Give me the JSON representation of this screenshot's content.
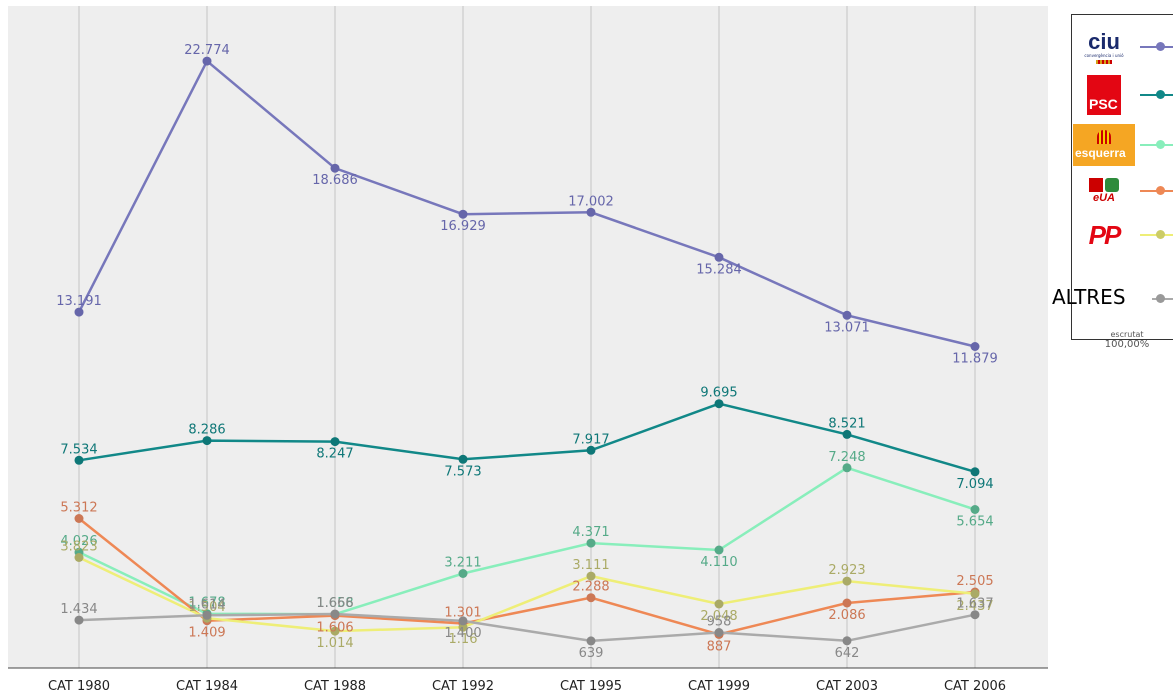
{
  "chart_data": {
    "type": "line",
    "categories": [
      "CAT 1980",
      "CAT 1984",
      "CAT 1988",
      "CAT 1992",
      "CAT 1995",
      "CAT 1999",
      "CAT 2003",
      "CAT 2006"
    ],
    "series": [
      {
        "name": "ciu",
        "color": "#7777bb",
        "labelColor": "#6666aa",
        "values": [
          13.191,
          22.774,
          18.686,
          16.929,
          17.002,
          15.284,
          13.071,
          11.879
        ]
      },
      {
        "name": "PSC",
        "color": "#118888",
        "labelColor": "#0e7777",
        "values": [
          7.534,
          8.286,
          8.247,
          7.573,
          7.917,
          9.695,
          8.521,
          7.094
        ]
      },
      {
        "name": "esquerra",
        "color": "#88eebb",
        "labelColor": "#55aa88",
        "values": [
          4.026,
          1.678,
          1.658,
          3.211,
          4.371,
          4.11,
          7.248,
          5.654
        ]
      },
      {
        "name": "eua",
        "color": "#ee8855",
        "labelColor": "#cc7755",
        "values": [
          5.312,
          1.409,
          1.606,
          1.301,
          2.288,
          0.887,
          2.086,
          2.505
        ]
      },
      {
        "name": "PP",
        "color": "#eeee77",
        "labelColor": "#aaaa66",
        "values": [
          3.823,
          1.504,
          1.014,
          1.16,
          3.111,
          2.048,
          2.923,
          2.437
        ]
      },
      {
        "name": "ALTRES",
        "color": "#aaaaaa",
        "labelColor": "#888888",
        "values": [
          1.434,
          1.614,
          1.666,
          1.4,
          0.639,
          0.958,
          0.642,
          1.637
        ]
      }
    ],
    "point_labels": [
      [
        "13.191",
        "22.774",
        "18.686",
        "16.929",
        "17.002",
        "15.284",
        "13.071",
        "11.879"
      ],
      [
        "7.534",
        "8.286",
        "8.247",
        "7.573",
        "7.917",
        "9.695",
        "8.521",
        "7.094"
      ],
      [
        "4.026",
        "1.678",
        "1.658",
        "3.211",
        "4.371",
        "4.110",
        "7.248",
        "5.654"
      ],
      [
        "5.312",
        "1.409",
        "1.606",
        "1.301",
        "2.288",
        "887",
        "2.086",
        "2.505"
      ],
      [
        "3.823",
        "1.504",
        "1.014",
        "1.16",
        "3.111",
        "2.048",
        "2.923",
        "2.437"
      ],
      [
        "1.434",
        "1.614",
        "1.666",
        "1.400",
        "639",
        "958",
        "642",
        "1.637"
      ]
    ],
    "ylim": [
      0.1,
      24
    ],
    "grid": "vertical",
    "legend": "right"
  },
  "legend": {
    "ciu_logo": "ciu",
    "ciu_sub": "convergència i unió",
    "psc_logo": "PSC",
    "erc_logo": "esquerra",
    "iu_logo": "eUA",
    "pp_logo": "PP",
    "altres_label": "ALTRES"
  },
  "footnote": {
    "label": "escrutat",
    "value": "100,00%"
  }
}
